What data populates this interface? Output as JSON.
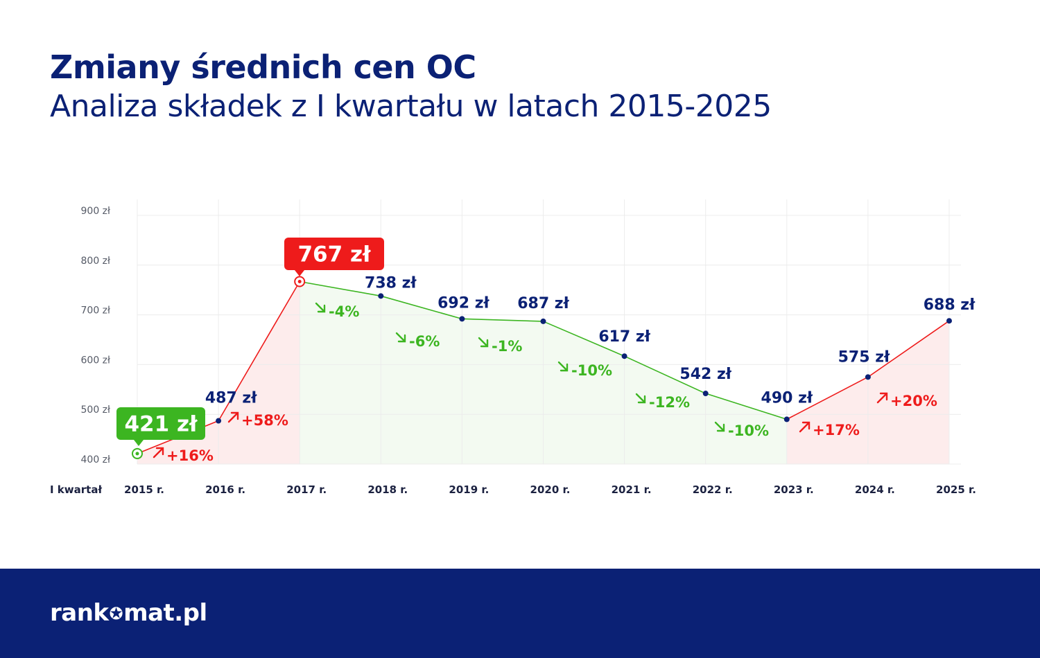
{
  "header": {
    "title": "Zmiany średnich cen OC",
    "subtitle": "Analiza składek z I kwartału w latach 2015-2025"
  },
  "colors": {
    "navy": "#0b2175",
    "up": "#ee1b1b",
    "down": "#3cb521",
    "grid": "#ececec",
    "up_fill": "#fdecec",
    "down_fill": "#f3faf1"
  },
  "chart_data": {
    "type": "line",
    "title": "Zmiany średnich cen OC",
    "subtitle": "Analiza składek z I kwartału w latach 2015-2025",
    "xlabel": "I kwartał",
    "ylabel": "",
    "ylim": [
      400,
      900
    ],
    "y_ticks": [
      400,
      500,
      600,
      700,
      800,
      900
    ],
    "y_tick_labels": [
      "400 zł",
      "500 zł",
      "600 zł",
      "700 zł",
      "800 zł",
      "900 zł"
    ],
    "categories": [
      "2015 r.",
      "2016 r.",
      "2017 r.",
      "2018 r.",
      "2019 r.",
      "2020 r.",
      "2021 r.",
      "2022 r.",
      "2023 r.",
      "2024 r.",
      "2025 r."
    ],
    "values": [
      421,
      487,
      767,
      738,
      692,
      687,
      617,
      542,
      490,
      575,
      688
    ],
    "value_labels": [
      "421 zł",
      "487 zł",
      "767 zł",
      "738 zł",
      "692 zł",
      "687 zł",
      "617 zł",
      "542 zł",
      "490 zł",
      "575 zł",
      "688 zł"
    ],
    "changes": [
      "+16%",
      "+58%",
      "-4%",
      "-6%",
      "-1%",
      "-10%",
      "-12%",
      "-10%",
      "+17%",
      "+20%"
    ],
    "highlight_min": "421 zł",
    "highlight_max": "767 zł",
    "grid": true
  },
  "footer": {
    "logo_left": "rank",
    "logo_right": "mat.pl",
    "logo_icon": "star-icon"
  }
}
